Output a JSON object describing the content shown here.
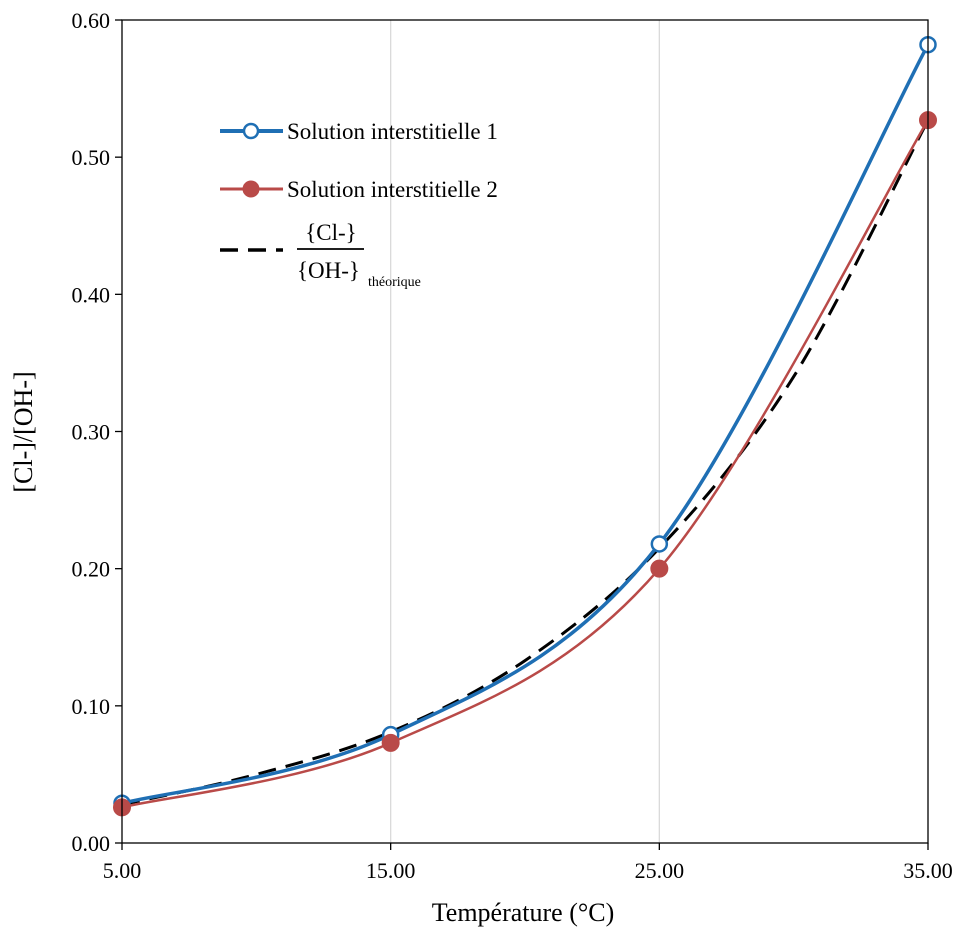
{
  "chart_data": {
    "type": "line",
    "xlabel": "Température (°C)",
    "ylabel": "[Cl-]/[OH-]",
    "xlim": [
      5,
      35
    ],
    "ylim": [
      0,
      0.6
    ],
    "x_ticks": [
      "5.00",
      "15.00",
      "25.00",
      "35.00"
    ],
    "y_ticks": [
      "0.00",
      "0.10",
      "0.20",
      "0.30",
      "0.40",
      "0.50",
      "0.60"
    ],
    "x_tick_values": [
      5,
      15,
      25,
      35
    ],
    "y_tick_values": [
      0,
      0.1,
      0.2,
      0.3,
      0.4,
      0.5,
      0.6
    ],
    "grid": "vertical",
    "legend_position": "top-left",
    "series": [
      {
        "name": "Solution interstitielle 1",
        "color": "#1F6FB4",
        "marker": "open-circle",
        "x": [
          5,
          15,
          25,
          35
        ],
        "y": [
          0.029,
          0.079,
          0.218,
          0.582
        ]
      },
      {
        "name": "Solution interstitielle 2",
        "color": "#B94A48",
        "marker": "filled-circle",
        "x": [
          5,
          15,
          25,
          35
        ],
        "y": [
          0.026,
          0.073,
          0.2,
          0.527
        ]
      },
      {
        "name_numerator": "{Cl-}",
        "name_denominator": "{OH-}",
        "name_subscript": "théorique",
        "color": "#000000",
        "marker": "none",
        "line_style": "dashed",
        "x": [
          5,
          10,
          15,
          20,
          25,
          30,
          35
        ],
        "y": [
          0.028,
          0.05,
          0.081,
          0.133,
          0.215,
          0.34,
          0.527
        ]
      }
    ]
  }
}
